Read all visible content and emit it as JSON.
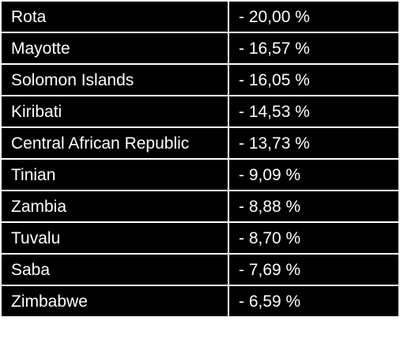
{
  "table": {
    "rows": [
      [
        "Rota",
        "- 20,00 %"
      ],
      [
        "Mayotte",
        "- 16,57 %"
      ],
      [
        "Solomon Islands",
        "- 16,05 %"
      ],
      [
        "Kiribati",
        "- 14,53 %"
      ],
      [
        "Central African Republic",
        "- 13,73 %"
      ],
      [
        "Tinian",
        "- 9,09 %"
      ],
      [
        "Zambia",
        "- 8,88 %"
      ],
      [
        "Tuvalu",
        "- 8,70 %"
      ],
      [
        "Saba",
        "- 7,69 %"
      ],
      [
        "Zimbabwe",
        "- 6,59 %"
      ]
    ]
  }
}
